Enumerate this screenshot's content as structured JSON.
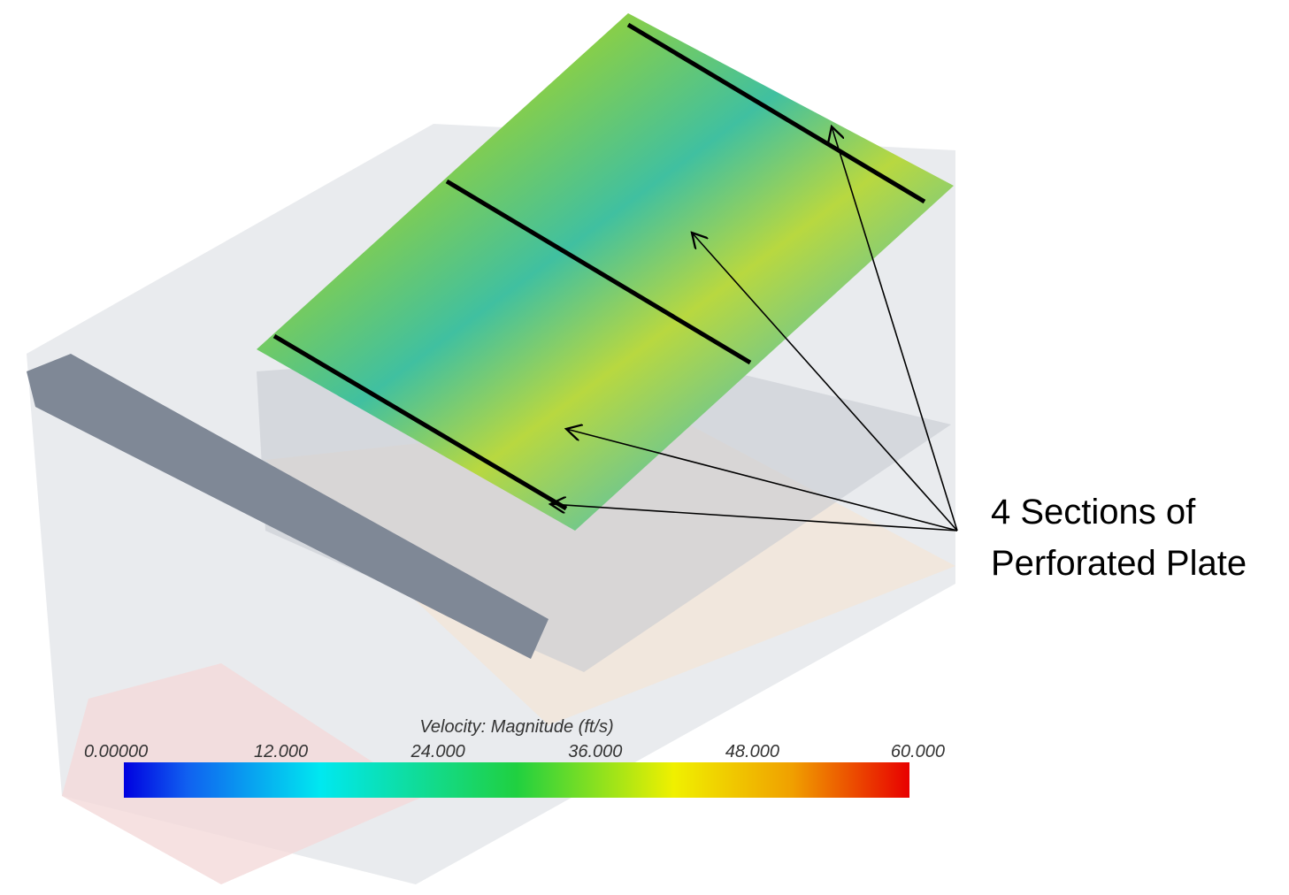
{
  "annotation": {
    "lines": [
      "4 Sections of",
      "Perforated Plate"
    ]
  },
  "colorbar": {
    "title": "Velocity: Magnitude (ft/s)",
    "range": [
      0,
      60
    ],
    "ticks": [
      {
        "value": 0,
        "label": "0.00000"
      },
      {
        "value": 12,
        "label": "12.000"
      },
      {
        "value": 24,
        "label": "24.000"
      },
      {
        "value": 36,
        "label": "36.000"
      },
      {
        "value": 48,
        "label": "48.000"
      },
      {
        "value": 60,
        "label": "60.000"
      }
    ]
  }
}
